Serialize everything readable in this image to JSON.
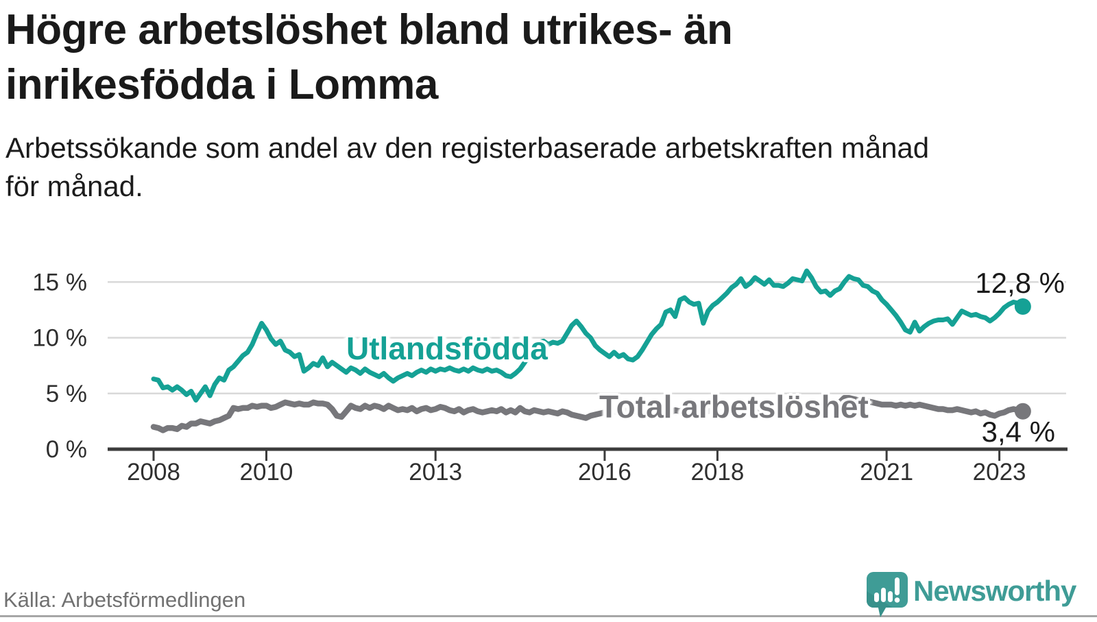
{
  "header": {
    "title_line1": "Högre arbetslöshet bland utrikes- än",
    "title_line2": "inrikesfödda i Lomma",
    "subtitle_line1": "Arbetssökande som andel av den registerbaserade arbetskraften månad",
    "subtitle_line2": "för månad."
  },
  "chart_data": {
    "type": "line",
    "unit": "%",
    "frequency": "monthly",
    "x_start": "2008-01",
    "x_end": "2023-06",
    "ylim": [
      0,
      16.5
    ],
    "grid": "horizontal",
    "legend_position": "inline-labels",
    "y_ticks": [
      0,
      5,
      10,
      15
    ],
    "y_tick_labels": [
      "0 %",
      "5 %",
      "10 %",
      "15 %"
    ],
    "x_tick_years": [
      2008,
      2010,
      2013,
      2016,
      2018,
      2021,
      2023
    ],
    "x_tick_labels": [
      "2008",
      "2010",
      "2013",
      "2016",
      "2018",
      "2021",
      "2023"
    ],
    "series": [
      {
        "name": "Utlandsfödda",
        "color": "#15a195",
        "end_label": "12,8 %",
        "end_value": 12.8,
        "values": [
          6.3,
          6.2,
          5.5,
          5.6,
          5.3,
          5.6,
          5.3,
          4.9,
          5.2,
          4.4,
          5.0,
          5.6,
          4.8,
          5.8,
          6.4,
          6.2,
          7.1,
          7.4,
          7.9,
          8.4,
          8.7,
          9.4,
          10.4,
          11.3,
          10.7,
          9.9,
          9.4,
          9.7,
          8.9,
          8.7,
          8.3,
          8.5,
          7.0,
          7.3,
          7.7,
          7.5,
          8.2,
          7.4,
          7.8,
          7.5,
          7.2,
          6.9,
          7.3,
          7.1,
          6.8,
          7.2,
          6.9,
          6.7,
          6.5,
          6.8,
          6.4,
          6.1,
          6.4,
          6.6,
          6.8,
          6.6,
          6.9,
          7.1,
          6.9,
          7.2,
          7.0,
          7.2,
          7.1,
          7.3,
          7.1,
          7.0,
          7.2,
          7.0,
          7.3,
          7.1,
          7.0,
          7.2,
          7.0,
          7.1,
          6.9,
          6.6,
          6.5,
          6.8,
          7.2,
          7.8,
          8.4,
          9.0,
          9.6,
          9.7,
          9.4,
          9.6,
          9.5,
          9.7,
          10.4,
          11.1,
          11.5,
          11.0,
          10.4,
          10.0,
          9.3,
          8.9,
          8.6,
          8.3,
          8.7,
          8.3,
          8.5,
          8.1,
          8.0,
          8.3,
          8.9,
          9.6,
          10.3,
          10.8,
          11.2,
          12.3,
          12.5,
          11.9,
          13.4,
          13.6,
          13.2,
          13.0,
          13.1,
          11.3,
          12.4,
          12.9,
          13.2,
          13.6,
          14.0,
          14.5,
          14.8,
          15.3,
          14.6,
          14.9,
          15.4,
          15.1,
          14.8,
          15.2,
          14.7,
          14.7,
          14.6,
          14.9,
          15.3,
          15.2,
          15.1,
          16.0,
          15.4,
          14.6,
          14.1,
          14.2,
          13.8,
          14.2,
          14.4,
          15.0,
          15.5,
          15.3,
          15.2,
          14.7,
          14.6,
          14.2,
          14.0,
          13.4,
          13.0,
          12.5,
          12.0,
          11.4,
          10.7,
          10.5,
          11.4,
          10.6,
          11.0,
          11.3,
          11.5,
          11.6,
          11.6,
          11.7,
          11.2,
          11.8,
          12.4,
          12.2,
          12.0,
          12.1,
          11.9,
          11.8,
          11.5,
          11.8,
          12.2,
          12.7,
          13.0,
          13.2,
          13.1,
          12.8
        ]
      },
      {
        "name": "Total arbetslöshet",
        "color": "#77777b",
        "end_label": "3,4 %",
        "end_value": 3.4,
        "values": [
          2.0,
          1.9,
          1.7,
          1.9,
          1.9,
          1.8,
          2.1,
          2.0,
          2.3,
          2.3,
          2.5,
          2.4,
          2.3,
          2.5,
          2.6,
          2.8,
          3.0,
          3.7,
          3.6,
          3.7,
          3.7,
          3.9,
          3.8,
          3.9,
          3.9,
          3.7,
          3.8,
          4.0,
          4.2,
          4.1,
          4.0,
          4.1,
          4.0,
          4.0,
          4.2,
          4.1,
          4.1,
          4.0,
          3.6,
          3.0,
          2.9,
          3.4,
          3.9,
          3.7,
          3.6,
          3.9,
          3.7,
          3.9,
          3.8,
          3.6,
          3.9,
          3.7,
          3.5,
          3.6,
          3.5,
          3.7,
          3.4,
          3.6,
          3.7,
          3.5,
          3.6,
          3.8,
          3.7,
          3.5,
          3.4,
          3.6,
          3.3,
          3.5,
          3.6,
          3.4,
          3.3,
          3.4,
          3.5,
          3.4,
          3.6,
          3.3,
          3.5,
          3.3,
          3.7,
          3.4,
          3.3,
          3.5,
          3.4,
          3.3,
          3.4,
          3.3,
          3.2,
          3.4,
          3.3,
          3.1,
          3.0,
          2.9,
          2.8,
          3.0,
          3.1,
          3.2,
          3.3,
          3.2,
          3.4,
          3.3,
          3.5,
          3.4,
          3.3,
          3.4,
          3.5,
          3.4,
          3.3,
          3.4,
          3.5,
          3.4,
          3.3,
          3.5,
          3.4,
          3.6,
          3.5,
          3.4,
          3.5,
          3.3,
          3.4,
          3.5,
          3.4,
          3.3,
          3.5,
          3.4,
          3.3,
          3.4,
          3.2,
          3.3,
          3.4,
          3.3,
          3.2,
          3.3,
          3.2,
          3.3,
          3.4,
          3.3,
          3.2,
          3.3,
          3.4,
          3.3,
          3.2,
          3.3,
          3.2,
          3.3,
          3.4,
          3.6,
          4.2,
          4.6,
          4.6,
          4.5,
          4.4,
          4.4,
          4.3,
          4.2,
          4.1,
          4.0,
          4.0,
          4.0,
          3.9,
          4.0,
          3.9,
          4.0,
          3.9,
          4.0,
          3.9,
          3.8,
          3.7,
          3.6,
          3.6,
          3.5,
          3.5,
          3.6,
          3.5,
          3.4,
          3.3,
          3.4,
          3.2,
          3.3,
          3.1,
          3.0,
          3.2,
          3.3,
          3.5,
          3.6,
          3.5,
          3.4
        ]
      }
    ],
    "colors": {
      "grid": "#d9d9d9",
      "axis": "#3b3b3b",
      "tick_text": "#2f2f2f"
    }
  },
  "footer": {
    "source": "Källa: Arbetsförmedlingen",
    "brand": "Newsworthy",
    "brand_color": "#3f9c96"
  }
}
